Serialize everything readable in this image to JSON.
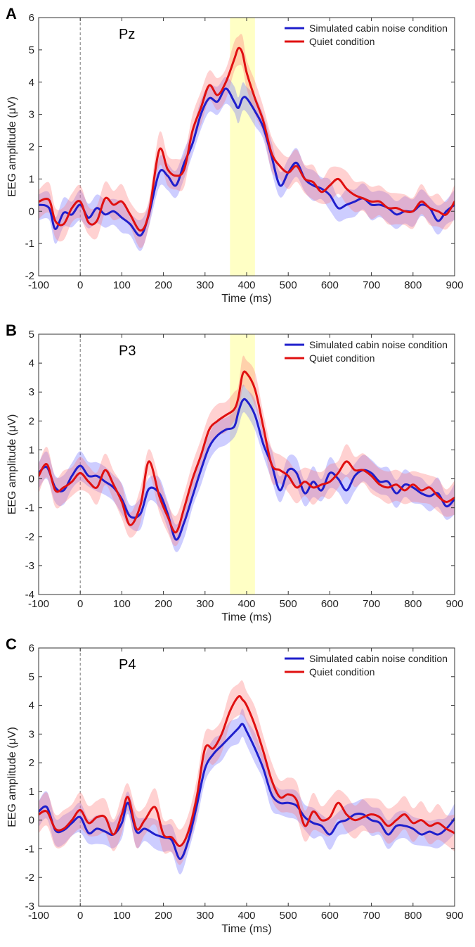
{
  "chart_data": [
    {
      "panel": "A",
      "channel": "Pz",
      "type": "line",
      "xlabel": "Time (ms)",
      "ylabel": "EEG amplitude (μV)",
      "xlim": [
        -100,
        900
      ],
      "ylim": [
        -2,
        6
      ],
      "xticks": [
        -100,
        0,
        100,
        200,
        300,
        400,
        500,
        600,
        700,
        800,
        900
      ],
      "yticks": [
        -2,
        -1,
        0,
        1,
        2,
        3,
        4,
        5,
        6
      ],
      "highlight": [
        360,
        420
      ],
      "onset": 0,
      "x": [
        -100,
        -75,
        -60,
        -40,
        -20,
        0,
        20,
        40,
        60,
        80,
        100,
        120,
        145,
        165,
        190,
        210,
        230,
        250,
        270,
        290,
        310,
        330,
        350,
        370,
        380,
        390,
        400,
        420,
        440,
        460,
        480,
        500,
        520,
        540,
        560,
        580,
        600,
        620,
        640,
        660,
        680,
        700,
        720,
        740,
        760,
        780,
        800,
        820,
        840,
        860,
        880,
        900
      ],
      "series": [
        {
          "name": "Simulated cabin noise condition",
          "color": "#1f1fcc",
          "band": "#6f6fff",
          "values": [
            0.2,
            0.1,
            -0.55,
            -0.05,
            -0.1,
            0.2,
            -0.2,
            0.1,
            -0.1,
            0.0,
            -0.2,
            -0.4,
            -0.75,
            -0.1,
            1.2,
            1.1,
            0.8,
            1.5,
            2.1,
            3.0,
            3.5,
            3.4,
            3.8,
            3.4,
            3.2,
            3.5,
            3.5,
            3.1,
            2.6,
            1.7,
            0.8,
            1.2,
            1.5,
            1.0,
            0.8,
            0.7,
            0.5,
            0.1,
            0.2,
            0.3,
            0.4,
            0.2,
            0.2,
            0.1,
            -0.1,
            0.0,
            0.0,
            0.2,
            0.1,
            -0.3,
            0.0,
            0.2
          ],
          "spread": 0.4
        },
        {
          "name": "Quiet condition",
          "color": "#e01010",
          "band": "#ff7a7a",
          "values": [
            0.3,
            0.35,
            -0.3,
            -0.4,
            0.1,
            0.3,
            -0.35,
            -0.3,
            0.4,
            0.2,
            0.3,
            -0.1,
            -0.6,
            -0.05,
            1.9,
            1.3,
            1.1,
            1.3,
            2.5,
            3.2,
            3.9,
            3.6,
            4.0,
            4.7,
            5.05,
            4.9,
            4.3,
            3.5,
            2.8,
            1.8,
            1.4,
            1.2,
            1.4,
            1.0,
            0.9,
            0.6,
            0.8,
            1.0,
            0.7,
            0.5,
            0.4,
            0.3,
            0.3,
            0.1,
            0.1,
            0.0,
            0.0,
            0.3,
            0.1,
            0.0,
            -0.1,
            0.3
          ],
          "spread": 0.45
        }
      ]
    },
    {
      "panel": "B",
      "channel": "P3",
      "type": "line",
      "xlabel": "Time (ms)",
      "ylabel": "EEG amplitude (μV)",
      "xlim": [
        -100,
        900
      ],
      "ylim": [
        -4,
        5
      ],
      "xticks": [
        -100,
        0,
        100,
        200,
        300,
        400,
        500,
        600,
        700,
        800,
        900
      ],
      "yticks": [
        -4,
        -3,
        -2,
        -1,
        0,
        1,
        2,
        3,
        4,
        5
      ],
      "highlight": [
        360,
        420
      ],
      "onset": 0,
      "x": [
        -100,
        -80,
        -60,
        -40,
        -20,
        0,
        20,
        40,
        60,
        80,
        100,
        120,
        145,
        165,
        190,
        210,
        230,
        250,
        270,
        290,
        310,
        330,
        350,
        370,
        380,
        390,
        400,
        420,
        440,
        460,
        480,
        500,
        520,
        540,
        560,
        580,
        600,
        620,
        640,
        660,
        680,
        700,
        720,
        740,
        760,
        780,
        800,
        820,
        840,
        860,
        880,
        900
      ],
      "series": [
        {
          "name": "Simulated cabin noise condition",
          "color": "#1f1fcc",
          "band": "#6f6fff",
          "values": [
            0.2,
            0.4,
            -0.3,
            -0.4,
            0.1,
            0.45,
            0.1,
            0.1,
            -0.1,
            -0.3,
            -0.7,
            -1.3,
            -1.2,
            -0.35,
            -0.5,
            -1.2,
            -2.1,
            -1.5,
            -0.6,
            0.3,
            1.1,
            1.5,
            1.7,
            1.8,
            2.3,
            2.7,
            2.7,
            2.2,
            1.2,
            0.5,
            -0.4,
            0.3,
            0.2,
            -0.5,
            -0.1,
            -0.4,
            0.2,
            0.0,
            -0.4,
            0.1,
            0.3,
            0.2,
            -0.1,
            -0.1,
            -0.5,
            -0.2,
            -0.3,
            -0.5,
            -0.6,
            -0.5,
            -0.95,
            -0.7
          ],
          "spread": 0.45
        },
        {
          "name": "Quiet condition",
          "color": "#e01010",
          "band": "#ff7a7a",
          "values": [
            0.1,
            0.5,
            -0.4,
            -0.3,
            -0.1,
            0.2,
            -0.1,
            -0.3,
            0.3,
            -0.2,
            -0.8,
            -1.6,
            -0.9,
            0.6,
            -0.6,
            -1.3,
            -1.85,
            -1.0,
            0.0,
            0.8,
            1.7,
            2.0,
            2.2,
            2.4,
            2.8,
            3.6,
            3.65,
            3.1,
            1.8,
            0.5,
            0.3,
            0.1,
            -0.3,
            -0.1,
            -0.3,
            -0.2,
            -0.1,
            0.2,
            0.6,
            0.3,
            0.3,
            0.1,
            -0.2,
            -0.3,
            -0.2,
            -0.4,
            -0.2,
            -0.4,
            -0.3,
            -0.6,
            -0.8,
            -0.65
          ],
          "spread": 0.5
        }
      ]
    },
    {
      "panel": "C",
      "channel": "P4",
      "type": "line",
      "xlabel": "Time (ms)",
      "ylabel": "EEG amplitude (μV)",
      "xlim": [
        -100,
        900
      ],
      "ylim": [
        -3,
        6
      ],
      "xticks": [
        -100,
        0,
        100,
        200,
        300,
        400,
        500,
        600,
        700,
        800,
        900
      ],
      "yticks": [
        -3,
        -2,
        -1,
        0,
        1,
        2,
        3,
        4,
        5,
        6
      ],
      "highlight": null,
      "onset": 0,
      "x": [
        -100,
        -80,
        -60,
        -40,
        -20,
        0,
        20,
        40,
        60,
        80,
        100,
        115,
        135,
        155,
        180,
        200,
        220,
        240,
        260,
        280,
        300,
        320,
        340,
        360,
        380,
        390,
        400,
        420,
        440,
        460,
        480,
        500,
        520,
        540,
        560,
        580,
        600,
        620,
        640,
        660,
        680,
        700,
        720,
        740,
        760,
        780,
        800,
        820,
        840,
        860,
        880,
        900
      ],
      "series": [
        {
          "name": "Simulated cabin noise condition",
          "color": "#1f1fcc",
          "band": "#6f6fff",
          "values": [
            0.3,
            0.45,
            -0.35,
            -0.35,
            -0.1,
            0.1,
            -0.45,
            -0.3,
            -0.4,
            -0.5,
            -0.1,
            0.6,
            -0.4,
            -0.3,
            -0.5,
            -0.6,
            -0.7,
            -1.35,
            -0.7,
            0.5,
            1.8,
            2.3,
            2.6,
            2.9,
            3.2,
            3.35,
            3.1,
            2.5,
            1.8,
            0.9,
            0.6,
            0.6,
            0.5,
            0.1,
            -0.1,
            -0.2,
            -0.5,
            -0.1,
            0.0,
            0.2,
            0.2,
            0.0,
            -0.1,
            -0.5,
            -0.2,
            -0.2,
            -0.3,
            -0.5,
            -0.4,
            -0.5,
            -0.3,
            0.05
          ],
          "spread": 0.45
        },
        {
          "name": "Quiet condition",
          "color": "#e01010",
          "band": "#ff7a7a",
          "values": [
            0.2,
            0.3,
            -0.3,
            -0.3,
            0.0,
            0.35,
            -0.1,
            0.1,
            0.1,
            -0.5,
            0.2,
            0.8,
            -0.3,
            0.0,
            0.45,
            -0.5,
            -0.6,
            -0.9,
            -0.4,
            0.8,
            2.5,
            2.5,
            3.0,
            3.8,
            4.3,
            4.2,
            4.0,
            3.3,
            2.4,
            1.4,
            0.8,
            0.9,
            0.7,
            -0.2,
            0.3,
            0.0,
            0.1,
            0.6,
            0.2,
            0.0,
            0.1,
            0.2,
            0.1,
            -0.2,
            0.0,
            0.2,
            -0.1,
            0.0,
            -0.2,
            -0.1,
            -0.3,
            -0.45
          ],
          "spread": 0.55
        }
      ]
    }
  ]
}
